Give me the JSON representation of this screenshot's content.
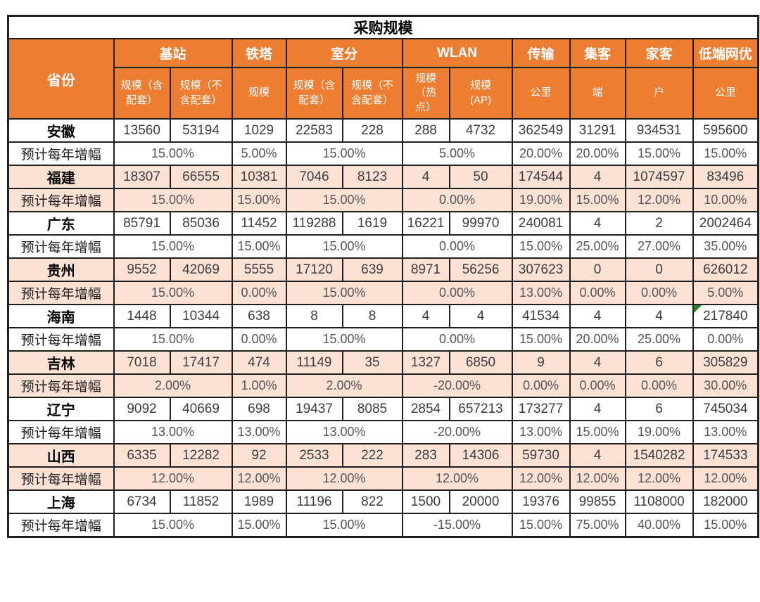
{
  "title": "采购规模",
  "header": {
    "province": "省份",
    "groups": [
      {
        "label": "基站",
        "span": 2
      },
      {
        "label": "铁塔",
        "span": 1
      },
      {
        "label": "室分",
        "span": 2
      },
      {
        "label": "WLAN",
        "span": 2
      },
      {
        "label": "传输",
        "span": 1
      },
      {
        "label": "集客",
        "span": 1
      },
      {
        "label": "家客",
        "span": 1
      },
      {
        "label": "低端网优",
        "span": 1
      }
    ],
    "subs": [
      "规模（含\n配套）",
      "规模（不\n含配套）",
      "规模",
      "规模（含\n配套）",
      "规模（不\n含配套）",
      "规模\n（热\n点）",
      "规模\n(AP)",
      "公里",
      "端",
      "户",
      "公里"
    ]
  },
  "growth_label": "预计每年增幅",
  "growth_spans": [
    2,
    1,
    2,
    2,
    1,
    1,
    1,
    1
  ],
  "rows": [
    {
      "province": "安徽",
      "shaded": false,
      "values": [
        "13560",
        "53194",
        "1029",
        "22583",
        "228",
        "288",
        "4732",
        "362549",
        "31291",
        "934531",
        "595600"
      ],
      "growth": [
        "15.00%",
        "5.00%",
        "15.00%",
        "5.00%",
        "20.00%",
        "20.00%",
        "15.00%",
        "15.00%"
      ]
    },
    {
      "province": "福建",
      "shaded": true,
      "values": [
        "18307",
        "66555",
        "10381",
        "7046",
        "8123",
        "4",
        "50",
        "174544",
        "4",
        "1074597",
        "83496"
      ],
      "growth": [
        "15.00%",
        "15.00%",
        "15.00%",
        "0.00%",
        "19.00%",
        "15.00%",
        "12.00%",
        "10.00%"
      ]
    },
    {
      "province": "广东",
      "shaded": false,
      "values": [
        "85791",
        "85036",
        "11452",
        "119288",
        "1619",
        "16221",
        "99970",
        "240081",
        "4",
        "2",
        "2002464"
      ],
      "growth": [
        "15.00%",
        "15.00%",
        "15.00%",
        "0.00%",
        "15.00%",
        "25.00%",
        "27.00%",
        "35.00%"
      ]
    },
    {
      "province": "贵州",
      "shaded": true,
      "values": [
        "9552",
        "42069",
        "5555",
        "17120",
        "639",
        "8971",
        "56256",
        "307623",
        "0",
        "0",
        "626012"
      ],
      "growth": [
        "15.00%",
        "0.00%",
        "15.00%",
        "0.00%",
        "13.00%",
        "0.00%",
        "0.00%",
        "5.00%"
      ]
    },
    {
      "province": "海南",
      "shaded": false,
      "flag_index": 10,
      "values": [
        "1448",
        "10344",
        "638",
        "8",
        "8",
        "4",
        "4",
        "41534",
        "4",
        "4",
        "217840"
      ],
      "growth": [
        "15.00%",
        "0.00%",
        "15.00%",
        "0.00%",
        "15.00%",
        "20.00%",
        "25.00%",
        "0.00%"
      ]
    },
    {
      "province": "吉林",
      "shaded": true,
      "values": [
        "7018",
        "17417",
        "474",
        "11149",
        "35",
        "1327",
        "6850",
        "9",
        "4",
        "6",
        "305829"
      ],
      "growth": [
        "2.00%",
        "1.00%",
        "2.00%",
        "-20.00%",
        "0.00%",
        "0.00%",
        "0.00%",
        "30.00%"
      ]
    },
    {
      "province": "辽宁",
      "shaded": false,
      "values": [
        "9092",
        "40669",
        "698",
        "19437",
        "8085",
        "2854",
        "657213",
        "173277",
        "4",
        "6",
        "745034"
      ],
      "growth": [
        "13.00%",
        "13.00%",
        "13.00%",
        "-20.00%",
        "13.00%",
        "15.00%",
        "19.00%",
        "13.00%"
      ]
    },
    {
      "province": "山西",
      "shaded": true,
      "values": [
        "6335",
        "12282",
        "92",
        "2533",
        "222",
        "283",
        "14306",
        "59730",
        "4",
        "1540282",
        "174533"
      ],
      "growth": [
        "12.00%",
        "12.00%",
        "12.00%",
        "12.00%",
        "12.00%",
        "12.00%",
        "12.00%",
        "12.00%"
      ]
    },
    {
      "province": "上海",
      "shaded": false,
      "values": [
        "6734",
        "11852",
        "1989",
        "11196",
        "822",
        "1500",
        "20000",
        "19376",
        "99855",
        "1108000",
        "182000"
      ],
      "growth": [
        "15.00%",
        "15.00%",
        "15.00%",
        "-15.00%",
        "15.00%",
        "75.00%",
        "40.00%",
        "15.00%"
      ]
    }
  ],
  "colors": {
    "header_orange": "#ED7D31",
    "row_peach": "#FBE2D5",
    "border": "#1F1F1F",
    "flag_green": "#1E8A1E"
  }
}
